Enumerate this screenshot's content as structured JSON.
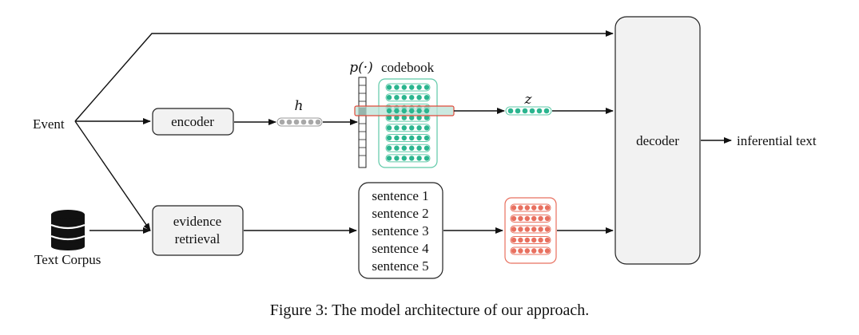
{
  "nodes": {
    "event": "Event",
    "text_corpus": "Text Corpus",
    "encoder": "encoder",
    "evidence_retrieval": [
      "evidence",
      "retrieval"
    ],
    "hidden_vector": "h",
    "prob_label": "p(·)",
    "codebook": "codebook",
    "latent_code": "z",
    "sentences": [
      "sentence 1",
      "sentence 2",
      "sentence 3",
      "sentence 4",
      "sentence 5"
    ],
    "decoder": "decoder",
    "output": "inferential text"
  },
  "caption": "Figure 3: The model architecture of our approach.",
  "colors": {
    "teal": "#2bb58f",
    "teal_border": "#5fc9a8",
    "red": "#e8705f",
    "red_border": "#e8705f",
    "gray_dot": "#a8a8a8",
    "box_fill": "#f2f2f2",
    "highlight_fill": "#b9e2d6",
    "highlight_border": "#e04a3a"
  }
}
